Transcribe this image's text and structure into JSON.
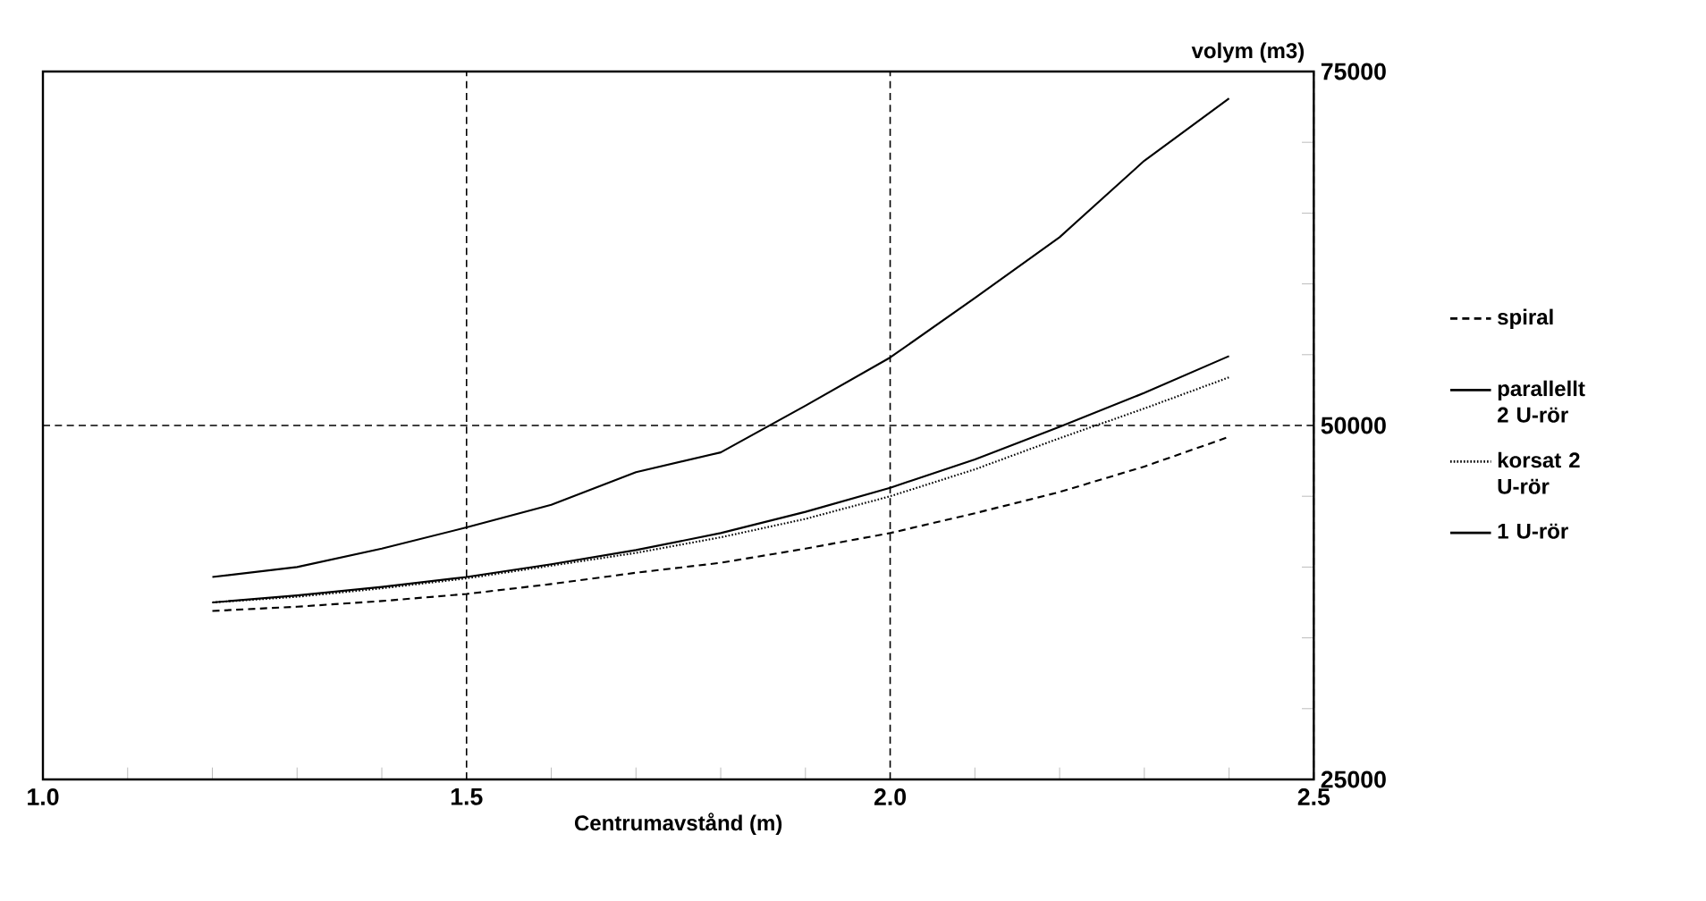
{
  "chart_data": {
    "type": "line",
    "xlabel": "Centrumavstånd (m)",
    "ylabel": "volym (m3)",
    "x": [
      1.2,
      1.3,
      1.4,
      1.5,
      1.6,
      1.7,
      1.8,
      1.9,
      2.0,
      2.1,
      2.2,
      2.3,
      2.4
    ],
    "series": [
      {
        "name": "spiral",
        "color": "#000000",
        "line_style": "dashed",
        "values": [
          36900,
          37200,
          37600,
          38100,
          38800,
          39600,
          40300,
          41300,
          42400,
          43800,
          45300,
          47100,
          49200
        ]
      },
      {
        "name": "parallellt 2 U-rör",
        "color": "#000000",
        "line_style": "solid",
        "values": [
          37500,
          38000,
          38600,
          39300,
          40200,
          41200,
          42400,
          43900,
          45600,
          47600,
          49900,
          52300,
          54900
        ]
      },
      {
        "name": "korsat 2 U-rör",
        "color": "#000000",
        "line_style": "dotted",
        "values": [
          37500,
          37900,
          38500,
          39200,
          40100,
          41000,
          42100,
          43400,
          45000,
          46900,
          49100,
          51200,
          53400
        ]
      },
      {
        "name": "1 U-rör",
        "color": "#000000",
        "line_style": "solid",
        "values": [
          39300,
          40000,
          41300,
          42800,
          44400,
          46700,
          48100,
          51400,
          54800,
          59000,
          63300,
          68700,
          73100
        ]
      }
    ],
    "xlim": [
      1.0,
      2.5
    ],
    "ylim": [
      25000,
      75000
    ],
    "xticks": [
      {
        "value": 1.0,
        "label": "1.0"
      },
      1.5,
      {
        "value": 2.0,
        "label": "2.0"
      },
      2.5
    ],
    "yticks": [
      25000,
      50000,
      75000
    ],
    "grid": true,
    "legend": "right",
    "marker": "none"
  }
}
